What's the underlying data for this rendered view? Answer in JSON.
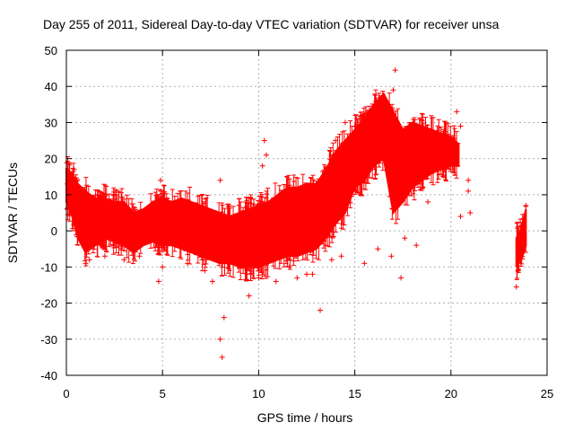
{
  "chart_data": {
    "type": "scatter",
    "title": "Day 255 of 2011, Sidereal Day-to-day VTEC variation (SDTVAR) for receiver unsa",
    "xlabel": "GPS time / hours",
    "ylabel": "SDTVAR / TECUs",
    "xlim": [
      0,
      25
    ],
    "ylim": [
      -40,
      50
    ],
    "x_ticks": [
      0,
      5,
      10,
      15,
      20,
      25
    ],
    "y_ticks": [
      -40,
      -30,
      -20,
      -10,
      0,
      10,
      20,
      30,
      40,
      50
    ],
    "x_tick_labels": [
      "0",
      "5",
      "10",
      "15",
      "20",
      "25"
    ],
    "y_tick_labels": [
      "-40",
      "-30",
      "-20",
      "-10",
      "0",
      "10",
      "20",
      "30",
      "40",
      "50"
    ],
    "grid": true,
    "series": [
      {
        "name": "SDTVAR",
        "color": "#ff0000",
        "marker": "+",
        "envelope": {
          "x": [
            0,
            0.3,
            0.6,
            1.0,
            1.5,
            2.0,
            2.5,
            3.0,
            3.5,
            4.0,
            4.5,
            5.0,
            5.5,
            6.0,
            6.5,
            7.0,
            7.5,
            8.0,
            8.5,
            9.0,
            9.5,
            10.0,
            10.5,
            11.0,
            11.5,
            12.0,
            12.5,
            13.0,
            13.5,
            14.0,
            14.5,
            15.0,
            15.5,
            16.0,
            16.5,
            17.0,
            17.5,
            18.0,
            18.5,
            19.0,
            19.5,
            20.0,
            20.4
          ],
          "upper": [
            17,
            16,
            13,
            11,
            9,
            9,
            8,
            8,
            5,
            6,
            8,
            9,
            8,
            9,
            8,
            7,
            6,
            5,
            4,
            5,
            6,
            7,
            8,
            10,
            12,
            12,
            13,
            13,
            17,
            22,
            25,
            28,
            31,
            35,
            38,
            33,
            28,
            30,
            29,
            28,
            27,
            26,
            24
          ],
          "lower": [
            8,
            4,
            -2,
            -6,
            -4,
            -2,
            -3,
            -4,
            -6,
            -4,
            -3,
            -4,
            -4,
            -5,
            -6,
            -7,
            -8,
            -9,
            -9,
            -10,
            -10,
            -10,
            -9,
            -8,
            -7,
            -7,
            -6,
            -5,
            -2,
            2,
            5,
            12,
            14,
            18,
            20,
            5,
            8,
            12,
            14,
            16,
            17,
            18,
            18
          ]
        },
        "gap_segment": {
          "x": [
            23.4,
            23.6,
            23.8,
            23.9
          ],
          "upper": [
            -2,
            0,
            4,
            6
          ],
          "lower": [
            -10,
            -8,
            -6,
            -4
          ]
        },
        "points": [
          {
            "x": 0.05,
            "y": 13
          },
          {
            "x": 0.4,
            "y": 17
          },
          {
            "x": 0.8,
            "y": 10
          },
          {
            "x": 1.0,
            "y": -9
          },
          {
            "x": 1.2,
            "y": -8
          },
          {
            "x": 2.0,
            "y": -7
          },
          {
            "x": 3.0,
            "y": -8
          },
          {
            "x": 3.8,
            "y": -7
          },
          {
            "x": 4.9,
            "y": 14
          },
          {
            "x": 4.9,
            "y": 11
          },
          {
            "x": 4.8,
            "y": -14
          },
          {
            "x": 5.0,
            "y": -10
          },
          {
            "x": 6.3,
            "y": -9
          },
          {
            "x": 7.2,
            "y": -11
          },
          {
            "x": 8.0,
            "y": 14
          },
          {
            "x": 8.0,
            "y": -30
          },
          {
            "x": 8.1,
            "y": -35
          },
          {
            "x": 8.2,
            "y": -24
          },
          {
            "x": 7.6,
            "y": -14
          },
          {
            "x": 9.5,
            "y": -18
          },
          {
            "x": 10.0,
            "y": -13
          },
          {
            "x": 10.9,
            "y": -14
          },
          {
            "x": 11.6,
            "y": -10
          },
          {
            "x": 12.0,
            "y": -13
          },
          {
            "x": 12.5,
            "y": -12
          },
          {
            "x": 12.8,
            "y": -12
          },
          {
            "x": 13.2,
            "y": -22
          },
          {
            "x": 13.8,
            "y": -8
          },
          {
            "x": 14.3,
            "y": -7
          },
          {
            "x": 15.5,
            "y": -9
          },
          {
            "x": 16.2,
            "y": -5
          },
          {
            "x": 16.9,
            "y": -7
          },
          {
            "x": 17.1,
            "y": 44.5
          },
          {
            "x": 17.0,
            "y": 39
          },
          {
            "x": 17.4,
            "y": -13
          },
          {
            "x": 17.6,
            "y": -2
          },
          {
            "x": 18.2,
            "y": -4
          },
          {
            "x": 18.8,
            "y": 8
          },
          {
            "x": 19.2,
            "y": 24
          },
          {
            "x": 20.3,
            "y": 33
          },
          {
            "x": 20.5,
            "y": 29
          },
          {
            "x": 20.5,
            "y": 4
          },
          {
            "x": 20.9,
            "y": 14
          },
          {
            "x": 20.9,
            "y": 11
          },
          {
            "x": 21.0,
            "y": 5
          },
          {
            "x": 23.4,
            "y": -15.5
          },
          {
            "x": 23.5,
            "y": -11
          },
          {
            "x": 23.9,
            "y": 7
          },
          {
            "x": 14.5,
            "y": 30
          },
          {
            "x": 15.0,
            "y": 29
          },
          {
            "x": 10.3,
            "y": 25
          },
          {
            "x": 10.4,
            "y": 21
          },
          {
            "x": 10.2,
            "y": 18
          },
          {
            "x": 14.0,
            "y": 25
          }
        ]
      }
    ]
  }
}
